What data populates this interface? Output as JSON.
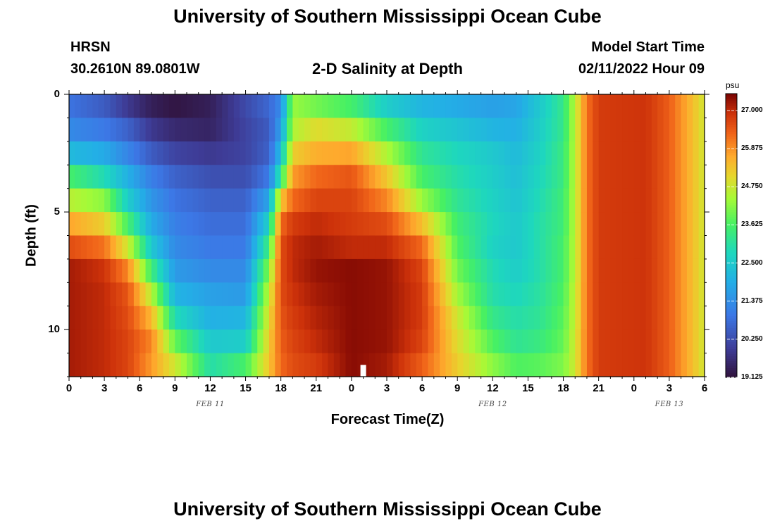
{
  "page": {
    "title_top": "University of Southern Mississippi Ocean Cube",
    "title_bottom": "University of Southern Mississippi Ocean Cube",
    "station": "HRSN",
    "coords": "30.2610N  89.0801W",
    "chart_title": "2-D Salinity at Depth",
    "model_start_label": "Model Start Time",
    "model_start_value": "02/11/2022 Hour 09"
  },
  "chart_data": {
    "type": "heatmap",
    "title": "2-D Salinity at Depth",
    "xlabel": "Forecast Time(Z)",
    "ylabel": "Depth (ft)",
    "x_tick_labels": [
      "0",
      "3",
      "6",
      "9",
      "12",
      "15",
      "18",
      "21",
      "0",
      "3",
      "6",
      "9",
      "12",
      "15",
      "18",
      "21",
      "0",
      "3",
      "6"
    ],
    "x_hours": [
      0,
      3,
      6,
      9,
      12,
      15,
      18,
      21,
      24,
      27,
      30,
      33,
      36,
      39,
      42,
      45,
      48,
      51,
      54
    ],
    "x_range_hours": [
      0,
      54
    ],
    "y_tick_labels": [
      "0",
      "5",
      "10"
    ],
    "y_ticks": [
      0,
      5,
      10
    ],
    "y_range": [
      0,
      12
    ],
    "depth_layers": [
      0.5,
      1.5,
      2.5,
      3.5,
      4.5,
      5.5,
      6.5,
      7.5,
      8.5,
      9.5,
      10.5,
      11.5
    ],
    "date_labels": [
      {
        "text": "FEB 11",
        "hour": 12
      },
      {
        "text": "FEB 12",
        "hour": 36
      },
      {
        "text": "FEB 13",
        "hour": 51
      }
    ],
    "colorbar": {
      "unit": "psu",
      "min": 19.125,
      "max": 27.5,
      "tick_values": [
        27.0,
        25.875,
        24.75,
        23.625,
        22.5,
        21.375,
        20.25,
        19.125
      ],
      "tick_labels": [
        "27.000",
        "25.875",
        "24.750",
        "23.625",
        "22.500",
        "21.375",
        "20.250",
        "19.125"
      ]
    },
    "salinity_profiles": [
      {
        "hour": 0,
        "values": [
          20.9,
          21.3,
          22.2,
          23.6,
          24.6,
          25.7,
          26.6,
          27.2,
          27.2,
          27.2,
          27.2,
          27.2
        ]
      },
      {
        "hour": 3,
        "values": [
          20.5,
          21.0,
          21.9,
          22.9,
          24.2,
          25.2,
          26.2,
          26.9,
          27.0,
          27.0,
          27.0,
          27.0
        ]
      },
      {
        "hour": 5,
        "values": [
          19.9,
          20.6,
          21.2,
          22.0,
          22.6,
          23.6,
          24.8,
          26.0,
          26.5,
          26.6,
          26.7,
          26.7
        ]
      },
      {
        "hour": 7,
        "values": [
          19.4,
          19.9,
          20.5,
          21.1,
          21.5,
          21.9,
          22.5,
          23.5,
          24.6,
          25.5,
          26.0,
          25.8
        ]
      },
      {
        "hour": 9,
        "values": [
          19.2,
          19.6,
          20.1,
          20.6,
          20.9,
          21.1,
          21.3,
          21.6,
          22.1,
          22.9,
          23.9,
          24.8
        ]
      },
      {
        "hour": 12,
        "values": [
          19.4,
          19.5,
          19.9,
          20.3,
          20.6,
          20.8,
          21.0,
          21.3,
          21.7,
          22.0,
          22.5,
          23.0
        ]
      },
      {
        "hour": 15,
        "values": [
          20.2,
          20.1,
          20.1,
          20.3,
          20.6,
          20.8,
          21.0,
          21.3,
          21.6,
          22.1,
          22.6,
          23.6
        ]
      },
      {
        "hour": 17,
        "values": [
          20.7,
          20.5,
          20.6,
          21.0,
          21.8,
          22.7,
          23.5,
          24.2,
          24.7,
          25.0,
          25.2,
          25.3
        ]
      },
      {
        "hour": 18,
        "values": [
          21.3,
          21.7,
          22.3,
          23.3,
          25.3,
          26.3,
          26.6,
          26.6,
          26.6,
          26.5,
          26.4,
          26.3
        ]
      },
      {
        "hour": 19,
        "values": [
          24.3,
          24.5,
          25.2,
          25.8,
          26.3,
          26.8,
          27.0,
          27.0,
          26.9,
          26.8,
          26.7,
          26.6
        ]
      },
      {
        "hour": 21,
        "values": [
          24.0,
          25.0,
          25.6,
          26.3,
          26.7,
          27.0,
          27.2,
          27.3,
          27.2,
          27.1,
          27.0,
          26.8
        ]
      },
      {
        "hour": 24,
        "values": [
          23.6,
          24.7,
          25.7,
          26.5,
          26.7,
          26.8,
          27.0,
          27.4,
          27.4,
          27.4,
          27.4,
          27.4
        ]
      },
      {
        "hour": 27,
        "values": [
          22.6,
          23.6,
          24.5,
          25.3,
          26.0,
          26.6,
          27.0,
          27.3,
          27.3,
          27.3,
          27.3,
          27.2
        ]
      },
      {
        "hour": 30,
        "values": [
          22.1,
          22.7,
          23.2,
          23.6,
          24.3,
          25.4,
          26.3,
          26.7,
          26.8,
          26.8,
          26.7,
          26.4
        ]
      },
      {
        "hour": 33,
        "values": [
          21.9,
          22.4,
          22.8,
          23.0,
          23.2,
          23.5,
          23.7,
          24.0,
          24.4,
          24.8,
          25.0,
          25.2
        ]
      },
      {
        "hour": 36,
        "values": [
          21.7,
          22.1,
          22.5,
          22.6,
          22.7,
          22.8,
          22.7,
          22.9,
          23.0,
          23.3,
          23.7,
          24.2
        ]
      },
      {
        "hour": 38,
        "values": [
          21.8,
          22.0,
          22.2,
          22.3,
          22.4,
          22.5,
          22.5,
          22.6,
          22.8,
          23.0,
          23.2,
          23.7
        ]
      },
      {
        "hour": 40,
        "values": [
          22.5,
          22.6,
          22.7,
          22.8,
          22.9,
          23.0,
          23.0,
          23.0,
          23.1,
          23.2,
          23.4,
          23.8
        ]
      },
      {
        "hour": 42,
        "values": [
          23.3,
          23.3,
          23.4,
          23.4,
          23.5,
          23.5,
          23.6,
          23.6,
          23.7,
          23.8,
          23.9,
          24.1
        ]
      },
      {
        "hour": 43,
        "values": [
          24.6,
          24.6,
          24.6,
          24.6,
          24.6,
          24.6,
          24.6,
          24.6,
          24.7,
          24.7,
          24.8,
          24.8
        ]
      },
      {
        "hour": 44,
        "values": [
          26.2,
          26.2,
          26.2,
          26.2,
          26.2,
          26.2,
          26.2,
          26.2,
          26.2,
          26.2,
          26.2,
          26.2
        ]
      },
      {
        "hour": 45,
        "values": [
          26.8,
          26.8,
          26.8,
          26.8,
          26.8,
          26.8,
          26.8,
          26.8,
          26.8,
          26.8,
          26.8,
          26.8
        ]
      },
      {
        "hour": 49,
        "values": [
          26.9,
          26.9,
          26.9,
          26.9,
          26.9,
          26.9,
          26.9,
          26.9,
          26.9,
          26.9,
          26.9,
          26.9
        ]
      },
      {
        "hour": 51,
        "values": [
          26.4,
          26.4,
          26.4,
          26.4,
          26.4,
          26.4,
          26.4,
          26.4,
          26.4,
          26.4,
          26.4,
          26.4
        ]
      },
      {
        "hour": 53,
        "values": [
          25.4,
          25.4,
          25.4,
          25.4,
          25.4,
          25.4,
          25.4,
          25.4,
          25.4,
          25.4,
          25.4,
          25.4
        ]
      },
      {
        "hour": 54,
        "values": [
          24.8,
          24.8,
          24.8,
          24.8,
          24.8,
          24.8,
          24.8,
          24.8,
          24.8,
          24.8,
          24.8,
          24.8
        ]
      }
    ],
    "marker": {
      "hour": 25,
      "depth_range": [
        11.5,
        12.0
      ],
      "color": "#ffffff"
    }
  }
}
